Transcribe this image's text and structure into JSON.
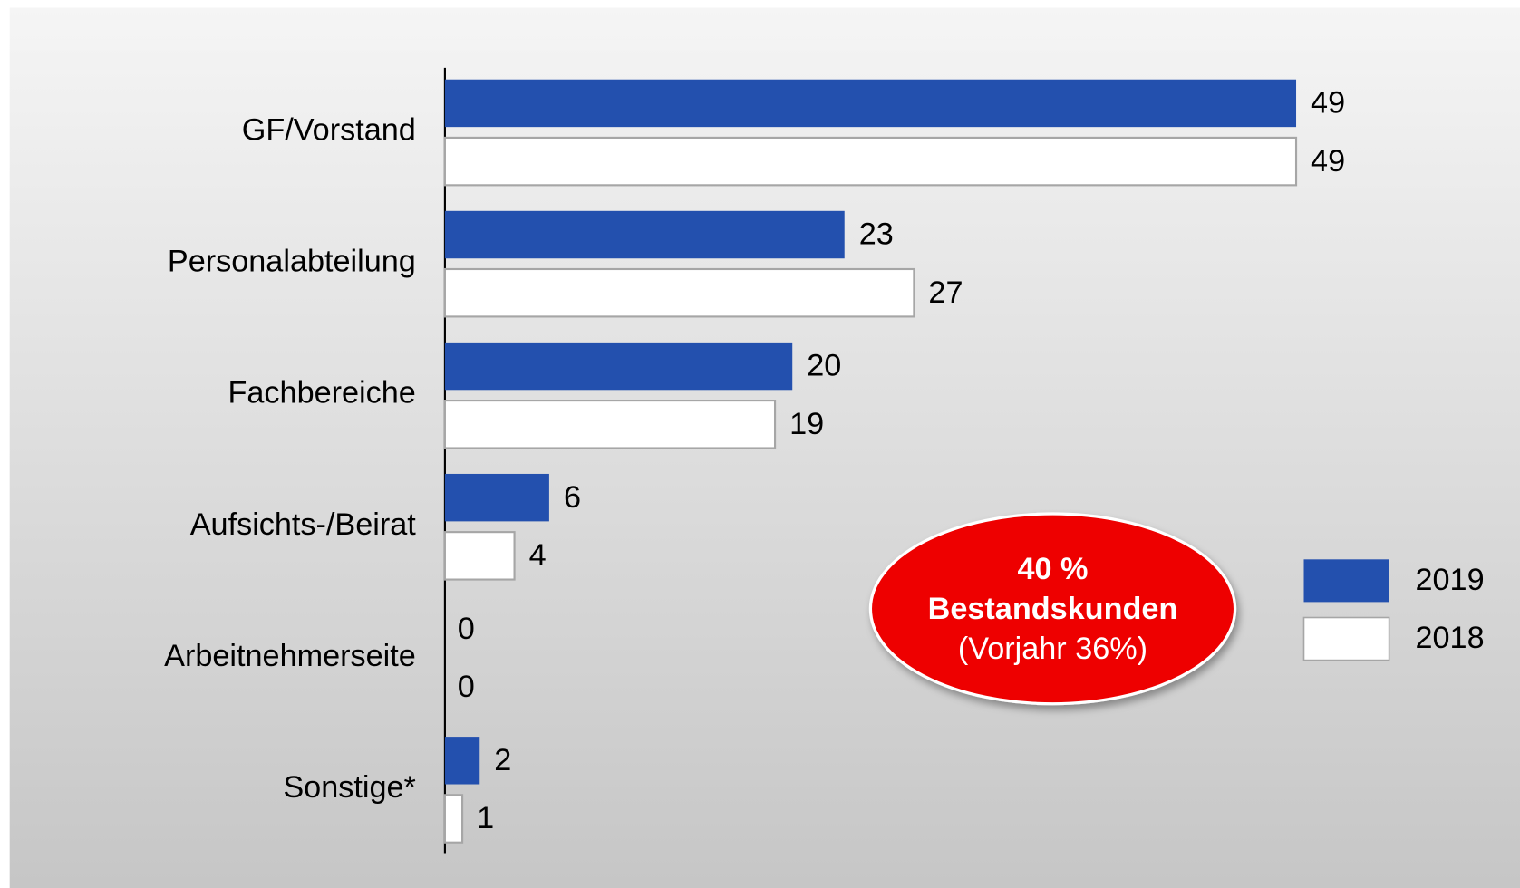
{
  "chart_data": {
    "type": "bar",
    "orientation": "horizontal",
    "categories": [
      "GF/Vorstand",
      "Personalabteilung",
      "Fachbereiche",
      "Aufsichts-/Beirat",
      "Arbeitnehmerseite",
      "Sonstige*"
    ],
    "series": [
      {
        "name": "2019",
        "color": "#2350ae",
        "values": [
          49,
          23,
          20,
          6,
          0,
          2
        ]
      },
      {
        "name": "2018",
        "color": "#ffffff",
        "values": [
          49,
          27,
          19,
          4,
          0,
          1
        ]
      }
    ],
    "legend": "right",
    "annotation": [
      "40 %",
      "Bestandskunden",
      "(Vorjahr 36%)"
    ],
    "annotation_color": "#ee0000"
  }
}
